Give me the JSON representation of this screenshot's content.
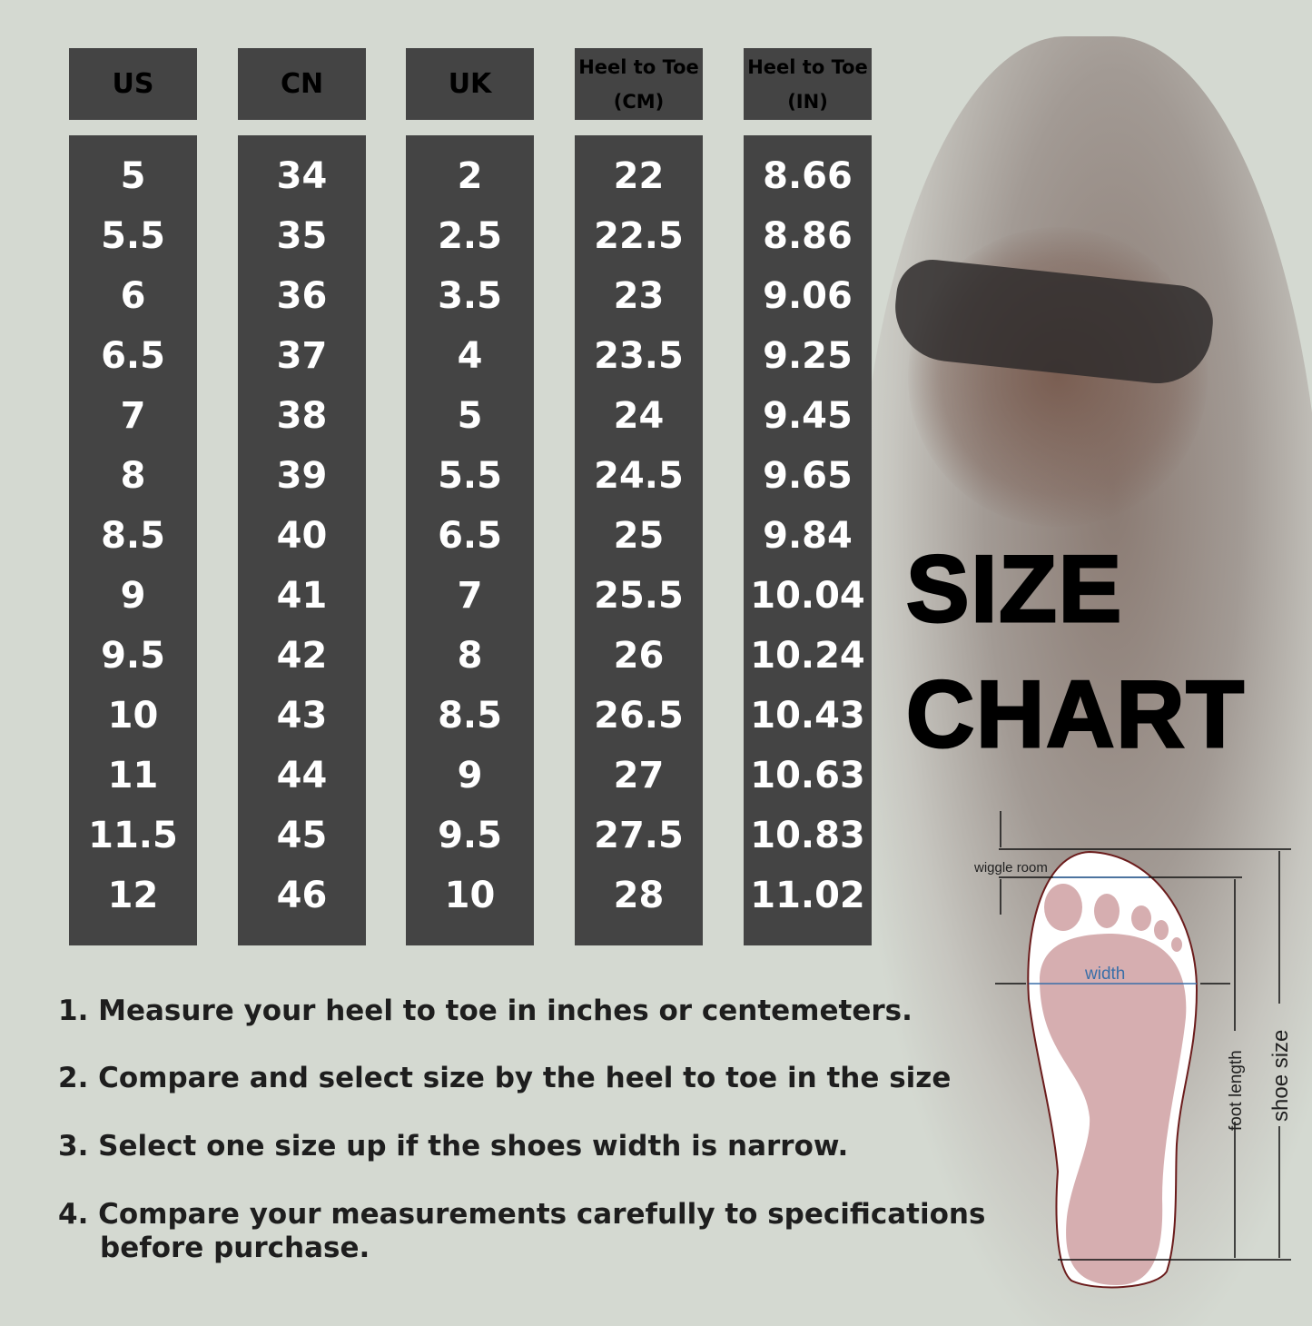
{
  "table": {
    "columns": [
      {
        "header": [
          "US"
        ],
        "values": [
          "5",
          "5.5",
          "6",
          "6.5",
          "7",
          "8",
          "8.5",
          "9",
          "9.5",
          "10",
          "11",
          "11.5",
          "12"
        ]
      },
      {
        "header": [
          "CN"
        ],
        "values": [
          "34",
          "35",
          "36",
          "37",
          "38",
          "39",
          "40",
          "41",
          "42",
          "43",
          "44",
          "45",
          "46"
        ]
      },
      {
        "header": [
          "UK"
        ],
        "values": [
          "2",
          "2.5",
          "3.5",
          "4",
          "5",
          "5.5",
          "6.5",
          "7",
          "8",
          "8.5",
          "9",
          "9.5",
          "10"
        ]
      },
      {
        "header": [
          "Heel to Toe",
          "(CM)"
        ],
        "values": [
          "22",
          "22.5",
          "23",
          "23.5",
          "24",
          "24.5",
          "25",
          "25.5",
          "26",
          "26.5",
          "27",
          "27.5",
          "28"
        ]
      },
      {
        "header": [
          "Heel to Toe",
          "(IN)"
        ],
        "values": [
          "8.66",
          "8.86",
          "9.06",
          "9.25",
          "9.45",
          "9.65",
          "9.84",
          "10.04",
          "10.24",
          "10.43",
          "10.63",
          "10.83",
          "11.02"
        ]
      }
    ]
  },
  "title": {
    "line1": "SIZE",
    "line2": "CHART"
  },
  "instructions": [
    "1. Measure your heel to toe in inches or centemeters.",
    "2. Compare and select size by the heel to toe in the size",
    "3. Select one size up if the shoes width is narrow.",
    "4. Compare your measurements carefully to specifications",
    "before purchase."
  ],
  "diagram": {
    "wiggle": "wiggle room",
    "width": "width",
    "foot_length": "foot length",
    "shoe_size": "shoe size",
    "sole_color": "#d6aeb0",
    "outline_color": "#6b1c1c",
    "width_line_color": "#3a6fa8"
  }
}
